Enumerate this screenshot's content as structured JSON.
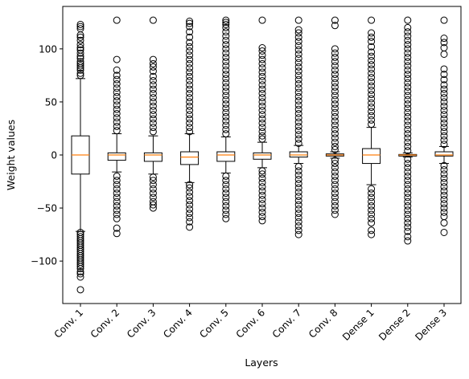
{
  "chart_data": {
    "type": "box",
    "title": "",
    "xlabel": "Layers",
    "ylabel": "Weight values",
    "ylim": [
      -140,
      140
    ],
    "y_ticks": [
      -100,
      -50,
      0,
      50,
      100
    ],
    "y_tick_labels": [
      "−100",
      "−50",
      "0",
      "50",
      "100"
    ],
    "grid": false,
    "colors": {
      "box": "#000000",
      "median": "#ff7f0e",
      "flier": "#000000"
    },
    "categories": [
      "Conv. 1",
      "Conv. 2",
      "Conv. 3",
      "Conv. 4",
      "Conv. 5",
      "Conv. 6",
      "Conv. 7",
      "Conv. 8",
      "Dense 1",
      "Dense 2",
      "Dense 3"
    ],
    "boxes": [
      {
        "label": "Conv. 1",
        "q1": -18,
        "median": 0,
        "q3": 18,
        "whisker_low": -72,
        "whisker_high": 72,
        "fliers": [
          -127,
          -115,
          -112,
          -110,
          -107,
          -105,
          -103,
          -101,
          -99,
          -97,
          -95,
          -93,
          -91,
          -89,
          -87,
          -85,
          -83,
          -81,
          -79,
          -77,
          -75,
          -73,
          75,
          77,
          80,
          82,
          84,
          86,
          88,
          91,
          93,
          96,
          99,
          101,
          104,
          108,
          111,
          113,
          119,
          121,
          123
        ]
      },
      {
        "label": "Conv. 2",
        "q1": -5,
        "median": 0,
        "q3": 2,
        "whisker_low": -16,
        "whisker_high": 20,
        "fliers": [
          -74,
          -69,
          -60,
          -56,
          -52,
          -48,
          -44,
          -40,
          -36,
          -32,
          -28,
          -24,
          -20,
          23,
          27,
          31,
          35,
          39,
          43,
          47,
          51,
          55,
          59,
          63,
          67,
          71,
          75,
          80,
          90,
          127
        ]
      },
      {
        "label": "Conv. 3",
        "q1": -6,
        "median": 0,
        "q3": 2,
        "whisker_low": -18,
        "whisker_high": 18,
        "fliers": [
          -50,
          -47,
          -44,
          -40,
          -36,
          -32,
          -28,
          -24,
          -21,
          22,
          26,
          30,
          34,
          38,
          42,
          46,
          50,
          54,
          58,
          62,
          66,
          70,
          74,
          79,
          83,
          86,
          90,
          127
        ]
      },
      {
        "label": "Conv. 4",
        "q1": -9,
        "median": -2,
        "q3": 3,
        "whisker_low": -26,
        "whisker_high": 20,
        "fliers": [
          -68,
          -63,
          -59,
          -55,
          -51,
          -47,
          -43,
          -39,
          -35,
          -31,
          -28,
          22,
          26,
          30,
          34,
          38,
          42,
          46,
          50,
          54,
          58,
          62,
          66,
          70,
          74,
          78,
          82,
          86,
          90,
          94,
          98,
          102,
          106,
          111,
          116,
          121,
          124,
          126
        ]
      },
      {
        "label": "Conv. 5",
        "q1": -6,
        "median": 0,
        "q3": 3,
        "whisker_low": -17,
        "whisker_high": 17,
        "fliers": [
          -60,
          -56,
          -52,
          -48,
          -44,
          -40,
          -36,
          -32,
          -28,
          -24,
          -20,
          20,
          24,
          28,
          32,
          36,
          40,
          44,
          48,
          52,
          56,
          60,
          64,
          68,
          72,
          76,
          80,
          84,
          88,
          92,
          96,
          100,
          104,
          108,
          112,
          116,
          120,
          123,
          125,
          127
        ]
      },
      {
        "label": "Conv. 6",
        "q1": -4,
        "median": 0,
        "q3": 2,
        "whisker_low": -12,
        "whisker_high": 12,
        "fliers": [
          -62,
          -58,
          -54,
          -50,
          -46,
          -42,
          -38,
          -34,
          -30,
          -26,
          -22,
          -18,
          -15,
          15,
          18,
          22,
          26,
          30,
          34,
          38,
          42,
          46,
          50,
          54,
          58,
          62,
          66,
          70,
          74,
          78,
          82,
          86,
          90,
          94,
          98,
          101,
          127
        ]
      },
      {
        "label": "Conv. 7",
        "q1": -2,
        "median": 0,
        "q3": 3,
        "whisker_low": -8,
        "whisker_high": 9,
        "fliers": [
          -75,
          -71,
          -67,
          -63,
          -59,
          -55,
          -51,
          -47,
          -43,
          -39,
          -35,
          -31,
          -27,
          -23,
          -19,
          -15,
          -11,
          11,
          15,
          19,
          23,
          27,
          31,
          35,
          39,
          43,
          47,
          51,
          55,
          59,
          63,
          67,
          71,
          75,
          79,
          83,
          87,
          91,
          95,
          99,
          103,
          107,
          111,
          115,
          118,
          127
        ]
      },
      {
        "label": "Conv. 8",
        "q1": -1,
        "median": 0,
        "q3": 1,
        "whisker_low": -3,
        "whisker_high": 3,
        "fliers": [
          -56,
          -52,
          -48,
          -44,
          -40,
          -36,
          -32,
          -28,
          -24,
          -20,
          -16,
          -12,
          -8,
          -5,
          5,
          8,
          12,
          16,
          20,
          24,
          28,
          32,
          36,
          40,
          44,
          48,
          52,
          56,
          60,
          64,
          68,
          72,
          76,
          80,
          84,
          88,
          92,
          96,
          100,
          122,
          127
        ]
      },
      {
        "label": "Dense 1",
        "q1": -8,
        "median": 0,
        "q3": 6,
        "whisker_low": -28,
        "whisker_high": 26,
        "fliers": [
          -75,
          -71,
          -64,
          -60,
          -56,
          -52,
          -48,
          -44,
          -40,
          -36,
          -32,
          29,
          33,
          37,
          41,
          45,
          49,
          53,
          57,
          61,
          65,
          69,
          73,
          77,
          81,
          85,
          89,
          93,
          97,
          102,
          107,
          111,
          115,
          127
        ]
      },
      {
        "label": "Dense 2",
        "q1": -1,
        "median": 0,
        "q3": 0.5,
        "whisker_low": -2,
        "whisker_high": 2,
        "fliers": [
          -81,
          -77,
          -72,
          -68,
          -64,
          -60,
          -56,
          -52,
          -48,
          -44,
          -40,
          -36,
          -32,
          -28,
          -24,
          -20,
          -16,
          -12,
          -8,
          -4,
          4,
          8,
          12,
          16,
          20,
          24,
          28,
          32,
          36,
          40,
          44,
          48,
          52,
          56,
          60,
          64,
          68,
          72,
          76,
          80,
          84,
          88,
          92,
          96,
          100,
          104,
          108,
          112,
          116,
          120,
          127
        ]
      },
      {
        "label": "Dense 3",
        "q1": -1,
        "median": 0,
        "q3": 3,
        "whisker_low": -8,
        "whisker_high": 8,
        "fliers": [
          -73,
          -64,
          -58,
          -54,
          -50,
          -46,
          -42,
          -38,
          -34,
          -30,
          -26,
          -22,
          -18,
          -14,
          -10,
          10,
          14,
          18,
          22,
          26,
          30,
          34,
          38,
          42,
          46,
          50,
          54,
          58,
          62,
          66,
          71,
          76,
          81,
          95,
          101,
          106,
          110,
          127
        ]
      }
    ]
  }
}
